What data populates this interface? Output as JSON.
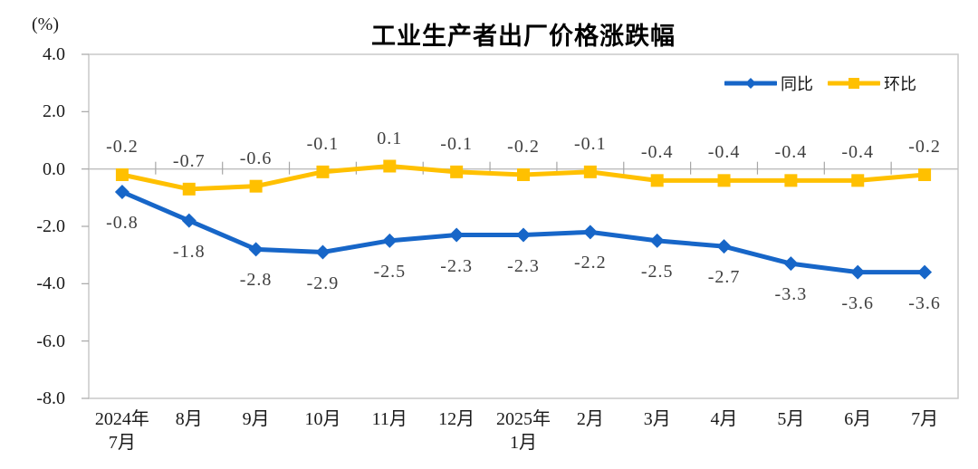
{
  "chart_data": {
    "type": "line",
    "title": "工业生产者出厂价格涨跌幅",
    "y_axis_unit": "(%)",
    "categories": [
      "2024年\n7月",
      "8月",
      "9月",
      "10月",
      "11月",
      "12月",
      "2025年\n1月",
      "2月",
      "3月",
      "4月",
      "5月",
      "6月",
      "7月"
    ],
    "series": [
      {
        "name": "同比",
        "marker": "diamond",
        "color": "#1766C8",
        "label_position": "below",
        "values": [
          -0.8,
          -1.8,
          -2.8,
          -2.9,
          -2.5,
          -2.3,
          -2.3,
          -2.2,
          -2.5,
          -2.7,
          -3.3,
          -3.6,
          -3.6
        ]
      },
      {
        "name": "环比",
        "marker": "square",
        "color": "#FFC000",
        "label_position": "above",
        "values": [
          -0.2,
          -0.7,
          -0.6,
          -0.1,
          0.1,
          -0.1,
          -0.2,
          -0.1,
          -0.4,
          -0.4,
          -0.4,
          -0.4,
          -0.2
        ]
      }
    ],
    "y_ticks": [
      4.0,
      2.0,
      0.0,
      -2.0,
      -4.0,
      -6.0,
      -8.0
    ],
    "ylim": [
      -8.0,
      4.0
    ],
    "grid": "zero-line-only",
    "legend_position": "top-right",
    "colors": {
      "plot_border": "#C8C8C8",
      "zero_line": "#BFBFBF",
      "axis_tick": "#A6A6A6",
      "data_label_text": "#3F3F3F",
      "axis_label_text": "#1A1A1A",
      "title_text": "#000000"
    }
  }
}
